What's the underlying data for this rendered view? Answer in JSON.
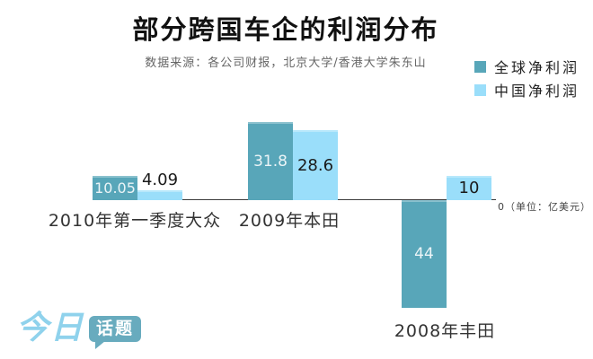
{
  "logo": {
    "part1": "今日",
    "part2": "话题"
  },
  "chart_data": {
    "type": "bar",
    "title": "部分跨国车企的利润分布",
    "source": "数据来源：各公司财报，北京大学/香港大学朱东山",
    "unit": "亿美元",
    "axis_label": "0（单位：亿美元）",
    "baseline": 0,
    "grid": false,
    "legend_position": "top-right",
    "categories": [
      "2010年第一季度大众",
      "2009年本田",
      "2008年丰田"
    ],
    "series": [
      {
        "name": "全球净利润",
        "color": "#58a6b9",
        "values": [
          10.05,
          31.8,
          -44
        ]
      },
      {
        "name": "中国净利润",
        "color": "#9adefa",
        "values": [
          4.09,
          28.6,
          10
        ]
      }
    ],
    "value_labels": [
      [
        "10.05",
        "4.09"
      ],
      [
        "31.8",
        "28.6"
      ],
      [
        "44",
        "10"
      ]
    ]
  }
}
